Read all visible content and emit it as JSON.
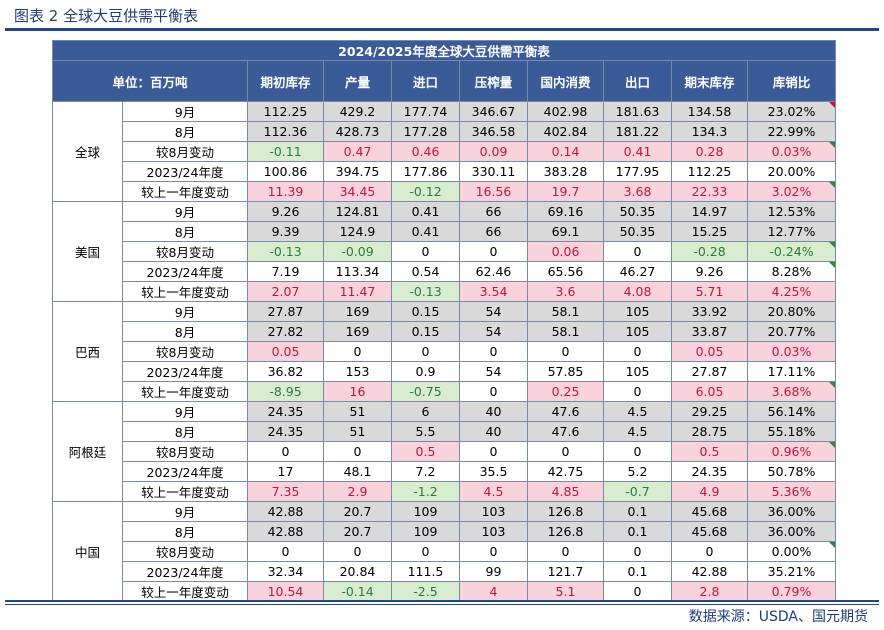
{
  "caption": "图表 2  全球大豆供需平衡表",
  "source": "数据来源：USDA、国元期货",
  "table": {
    "title": "2024/2025年度全球大豆供需平衡表",
    "unit_label": "单位：百万吨",
    "headers": [
      "期初库存",
      "产量",
      "进口",
      "压榨量",
      "国内消费",
      "出口",
      "期末库存",
      "库销比"
    ],
    "regions": [
      {
        "name": "全球",
        "rows": [
          {
            "label": "9月",
            "style": "gray",
            "values": [
              "112.25",
              "429.2",
              "177.74",
              "346.67",
              "402.98",
              "181.63",
              "134.58",
              "23.02%"
            ]
          },
          {
            "label": "8月",
            "style": "gray",
            "values": [
              "112.36",
              "428.73",
              "177.28",
              "346.58",
              "402.84",
              "181.22",
              "134.3",
              "22.99%"
            ]
          },
          {
            "label": "较8月变动",
            "style": "change",
            "values": [
              "-0.11",
              "0.47",
              "0.46",
              "0.09",
              "0.14",
              "0.41",
              "0.28",
              "0.03%"
            ]
          },
          {
            "label": "2023/24年度",
            "style": "plain",
            "values": [
              "100.86",
              "394.75",
              "177.86",
              "330.11",
              "383.28",
              "177.95",
              "112.25",
              "20.00%"
            ]
          },
          {
            "label": "较上一年度变动",
            "style": "change",
            "values": [
              "11.39",
              "34.45",
              "-0.12",
              "16.56",
              "19.7",
              "3.68",
              "22.33",
              "3.02%"
            ]
          }
        ]
      },
      {
        "name": "美国",
        "rows": [
          {
            "label": "9月",
            "style": "gray",
            "values": [
              "9.26",
              "124.81",
              "0.41",
              "66",
              "69.16",
              "50.35",
              "14.97",
              "12.53%"
            ]
          },
          {
            "label": "8月",
            "style": "gray",
            "values": [
              "9.39",
              "124.9",
              "0.41",
              "66",
              "69.1",
              "50.35",
              "15.25",
              "12.77%"
            ]
          },
          {
            "label": "较8月变动",
            "style": "change",
            "values": [
              "-0.13",
              "-0.09",
              "0",
              "0",
              "0.06",
              "0",
              "-0.28",
              "-0.24%"
            ]
          },
          {
            "label": "2023/24年度",
            "style": "plain",
            "values": [
              "7.19",
              "113.34",
              "0.54",
              "62.46",
              "65.56",
              "46.27",
              "9.26",
              "8.28%"
            ]
          },
          {
            "label": "较上一年度变动",
            "style": "change",
            "values": [
              "2.07",
              "11.47",
              "-0.13",
              "3.54",
              "3.6",
              "4.08",
              "5.71",
              "4.25%"
            ]
          }
        ]
      },
      {
        "name": "巴西",
        "rows": [
          {
            "label": "9月",
            "style": "gray",
            "values": [
              "27.87",
              "169",
              "0.15",
              "54",
              "58.1",
              "105",
              "33.92",
              "20.80%"
            ]
          },
          {
            "label": "8月",
            "style": "gray",
            "values": [
              "27.82",
              "169",
              "0.15",
              "54",
              "58.1",
              "105",
              "33.87",
              "20.77%"
            ]
          },
          {
            "label": "较8月变动",
            "style": "change",
            "values": [
              "0.05",
              "0",
              "0",
              "0",
              "0",
              "0",
              "0.05",
              "0.03%"
            ]
          },
          {
            "label": "2023/24年度",
            "style": "plain",
            "values": [
              "36.82",
              "153",
              "0.9",
              "54",
              "57.85",
              "105",
              "27.87",
              "17.11%"
            ]
          },
          {
            "label": "较上一年度变动",
            "style": "change",
            "values": [
              "-8.95",
              "16",
              "-0.75",
              "0",
              "0.25",
              "0",
              "6.05",
              "3.68%"
            ]
          }
        ]
      },
      {
        "name": "阿根廷",
        "rows": [
          {
            "label": "9月",
            "style": "gray",
            "values": [
              "24.35",
              "51",
              "6",
              "40",
              "47.6",
              "4.5",
              "29.25",
              "56.14%"
            ]
          },
          {
            "label": "8月",
            "style": "gray",
            "values": [
              "24.35",
              "51",
              "5.5",
              "40",
              "47.6",
              "4.5",
              "28.75",
              "55.18%"
            ]
          },
          {
            "label": "较8月变动",
            "style": "change",
            "values": [
              "0",
              "0",
              "0.5",
              "0",
              "0",
              "0",
              "0.5",
              "0.96%"
            ]
          },
          {
            "label": "2023/24年度",
            "style": "plain",
            "values": [
              "17",
              "48.1",
              "7.2",
              "35.5",
              "42.75",
              "5.2",
              "24.35",
              "50.78%"
            ]
          },
          {
            "label": "较上一年度变动",
            "style": "change",
            "values": [
              "7.35",
              "2.9",
              "-1.2",
              "4.5",
              "4.85",
              "-0.7",
              "4.9",
              "5.36%"
            ]
          }
        ]
      },
      {
        "name": "中国",
        "rows": [
          {
            "label": "9月",
            "style": "gray",
            "values": [
              "42.88",
              "20.7",
              "109",
              "103",
              "126.8",
              "0.1",
              "45.68",
              "36.00%"
            ]
          },
          {
            "label": "8月",
            "style": "gray",
            "values": [
              "42.88",
              "20.7",
              "109",
              "103",
              "126.8",
              "0.1",
              "45.68",
              "36.00%"
            ]
          },
          {
            "label": "较8月变动",
            "style": "change",
            "values": [
              "0",
              "0",
              "0",
              "0",
              "0",
              "0",
              "0",
              "0.00%"
            ]
          },
          {
            "label": "2023/24年度",
            "style": "plain",
            "values": [
              "32.34",
              "20.84",
              "111.5",
              "99",
              "121.7",
              "0.1",
              "42.88",
              "35.21%"
            ]
          },
          {
            "label": "较上一年度变动",
            "style": "change",
            "values": [
              "10.54",
              "-0.14",
              "-2.5",
              "4",
              "5.1",
              "0",
              "2.8",
              "0.79%"
            ]
          }
        ]
      }
    ]
  },
  "colors": {
    "header_bg": "#3a5a98",
    "header_text": "#ffffff",
    "row_gray": "#d9d9d9",
    "increase_bg": "#f8d3dc",
    "increase_text": "#c0143c",
    "decrease_bg": "#d8ecd0",
    "decrease_text": "#2f7a3a",
    "rule": "#24468a"
  }
}
